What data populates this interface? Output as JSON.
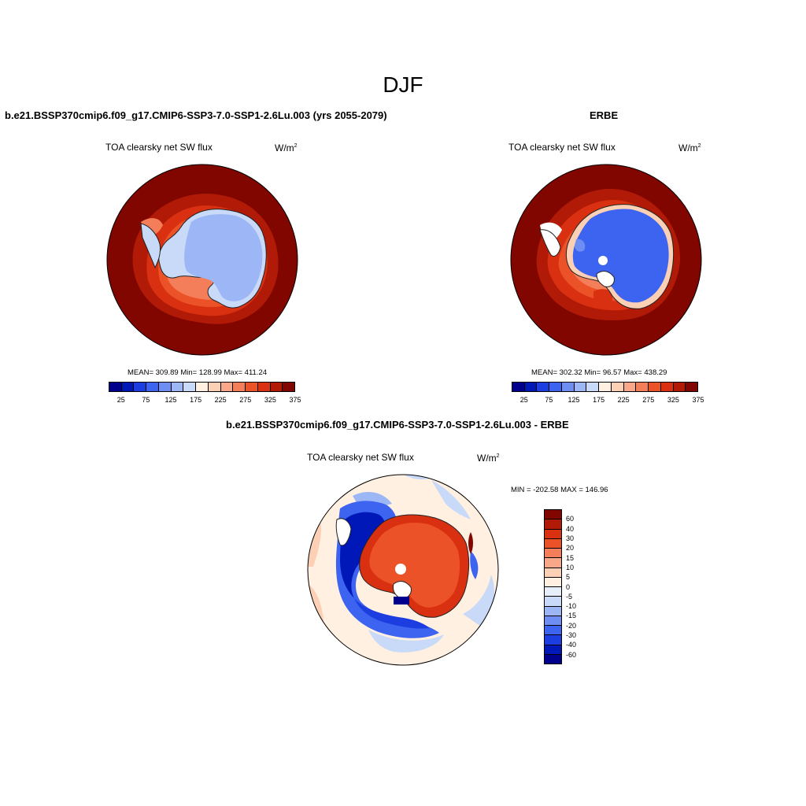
{
  "figure": {
    "title": "DJF"
  },
  "panels": {
    "model": {
      "title": "b.e21.BSSP370cmip6.f09_g17.CMIP6-SSP3-7.0-SSP1-2.6Lu.003 (yrs 2055-2079)",
      "variable": "TOA clearsky net SW flux",
      "units_base": "W/m",
      "units_exp": "2",
      "stats": "MEAN= 309.89  Min= 128.99  Max= 411.24"
    },
    "obs": {
      "title": "ERBE",
      "variable": "TOA clearsky net SW flux",
      "units_base": "W/m",
      "units_exp": "2",
      "stats": "MEAN= 302.32  Min=  96.57  Max= 438.29"
    },
    "diff": {
      "title": "b.e21.BSSP370cmip6.f09_g17.CMIP6-SSP3-7.0-SSP1-2.6Lu.003 - ERBE",
      "variable": "TOA clearsky net SW flux",
      "units_base": "W/m",
      "units_exp": "2",
      "stats": "MIN = -202.58 MAX = 146.96"
    }
  },
  "colorbars": {
    "abs": {
      "colors": [
        "#00008c",
        "#0018b8",
        "#1c3ee0",
        "#3c64f0",
        "#6e8ef4",
        "#9cb6f6",
        "#c8daf8",
        "#fff0e2",
        "#fcd0b4",
        "#f8a888",
        "#f47e5a",
        "#ec5228",
        "#d83010",
        "#b01a06",
        "#820600"
      ],
      "labels": [
        "25",
        "75",
        "125",
        "175",
        "225",
        "275",
        "325",
        "375"
      ]
    },
    "diff": {
      "colors": [
        "#820600",
        "#b01a06",
        "#d83010",
        "#ec5228",
        "#f47e5a",
        "#f8a888",
        "#fcd0b4",
        "#fff0e2",
        "#e6eefa",
        "#c8daf8",
        "#9cb6f6",
        "#6e8ef4",
        "#3c64f0",
        "#1c3ee0",
        "#0018b8",
        "#00008c"
      ],
      "labels": [
        "60",
        "40",
        "30",
        "20",
        "15",
        "10",
        "5",
        "0",
        "-5",
        "-10",
        "-15",
        "-20",
        "-30",
        "-40",
        "-60"
      ]
    }
  }
}
